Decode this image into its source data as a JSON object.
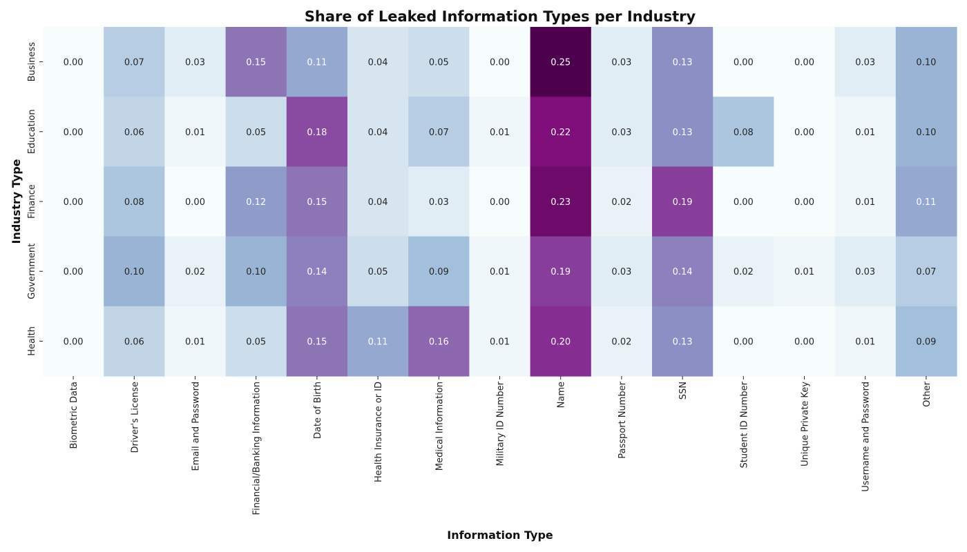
{
  "chart_data": {
    "type": "heatmap",
    "title": "Share of Leaked Information Types per Industry",
    "xlabel": "Information Type",
    "ylabel": "Industry Type",
    "x_categories": [
      "Biometric Data",
      "Driver's License",
      "Email and Password",
      "Financial/Banking Information",
      "Date of Birth",
      "Health Insurance or ID",
      "Medical Information",
      "Military ID Number",
      "Name",
      "Passport Number",
      "SSN",
      "Student ID Number",
      "Unique Private Key",
      "Username and Password",
      "Other"
    ],
    "y_categories": [
      "Business",
      "Education",
      "Finance",
      "Government",
      "Health"
    ],
    "values": [
      [
        0.0,
        0.07,
        0.03,
        0.15,
        0.11,
        0.04,
        0.05,
        0.0,
        0.25,
        0.03,
        0.13,
        0.0,
        0.0,
        0.03,
        0.1
      ],
      [
        0.0,
        0.06,
        0.01,
        0.05,
        0.18,
        0.04,
        0.07,
        0.01,
        0.22,
        0.03,
        0.13,
        0.08,
        0.0,
        0.01,
        0.1
      ],
      [
        0.0,
        0.08,
        0.0,
        0.12,
        0.15,
        0.04,
        0.03,
        0.0,
        0.23,
        0.02,
        0.19,
        0.0,
        0.0,
        0.01,
        0.11
      ],
      [
        0.0,
        0.1,
        0.02,
        0.1,
        0.14,
        0.05,
        0.09,
        0.01,
        0.19,
        0.03,
        0.14,
        0.02,
        0.01,
        0.03,
        0.07
      ],
      [
        0.0,
        0.06,
        0.01,
        0.05,
        0.15,
        0.11,
        0.16,
        0.01,
        0.2,
        0.02,
        0.13,
        0.0,
        0.0,
        0.01,
        0.09
      ]
    ],
    "value_range": [
      0,
      0.25
    ],
    "colormap": "BuPu",
    "colors": {
      "light": "#f7fcfd",
      "dark": "#4d004b",
      "text_dark": "#262626",
      "text_light": "#ffffff"
    },
    "colorbar": false,
    "grid": false
  }
}
